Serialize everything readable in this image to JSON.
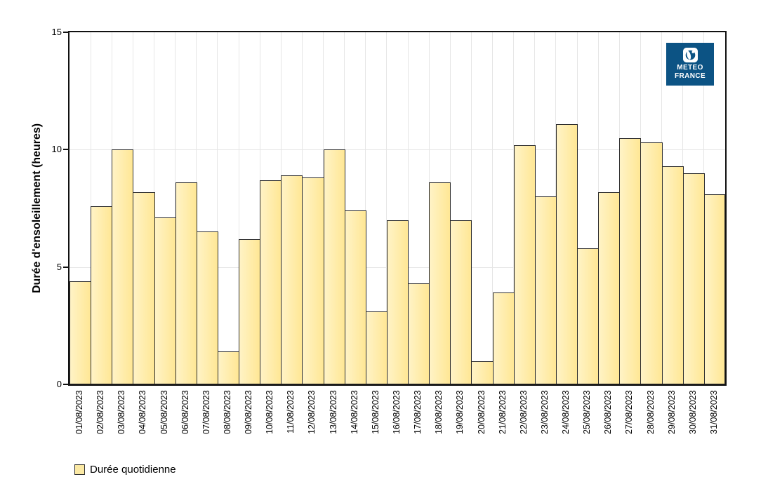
{
  "chart_data": {
    "type": "bar",
    "title": "",
    "xlabel": "",
    "ylabel": "Durée d'ensoleillement (heures)",
    "ylim": [
      0,
      15
    ],
    "yticks": [
      0,
      5,
      10,
      15
    ],
    "grid": true,
    "legend_position": "bottom-left",
    "series_name": "Durée quotidienne",
    "categories": [
      "01/08/2023",
      "02/08/2023",
      "03/08/2023",
      "04/08/2023",
      "05/08/2023",
      "06/08/2023",
      "07/08/2023",
      "08/08/2023",
      "09/08/2023",
      "10/08/2023",
      "11/08/2023",
      "12/08/2023",
      "13/08/2023",
      "14/08/2023",
      "15/08/2023",
      "16/08/2023",
      "17/08/2023",
      "18/08/2023",
      "19/08/2023",
      "20/08/2023",
      "21/08/2023",
      "22/08/2023",
      "23/08/2023",
      "24/08/2023",
      "25/08/2023",
      "26/08/2023",
      "27/08/2023",
      "28/08/2023",
      "29/08/2023",
      "30/08/2023",
      "31/08/2023"
    ],
    "values": [
      4.4,
      7.6,
      10.0,
      8.2,
      7.1,
      8.6,
      6.5,
      1.4,
      6.2,
      8.7,
      8.9,
      8.8,
      10.0,
      7.4,
      3.1,
      7.0,
      4.3,
      8.6,
      7.0,
      1.0,
      3.9,
      10.2,
      8.0,
      11.1,
      5.8,
      8.2,
      10.5,
      10.3,
      9.3,
      9.0,
      8.1
    ]
  },
  "y_axis": {
    "title": "Durée d'ensoleillement (heures)"
  },
  "legend": {
    "label": "Durée quotidienne",
    "swatch_color": "#fbe9a4"
  },
  "logo": {
    "line1": "METEO",
    "line2": "FRANCE",
    "bg_color": "#0c5384"
  },
  "colors": {
    "bar_fill_left": "#fff3c6",
    "bar_fill_right": "#ffe795",
    "bar_border": "#2e2e2e",
    "gridline": "#e6e6e6",
    "frame": "#111111",
    "logo_blue": "#0c5384"
  }
}
